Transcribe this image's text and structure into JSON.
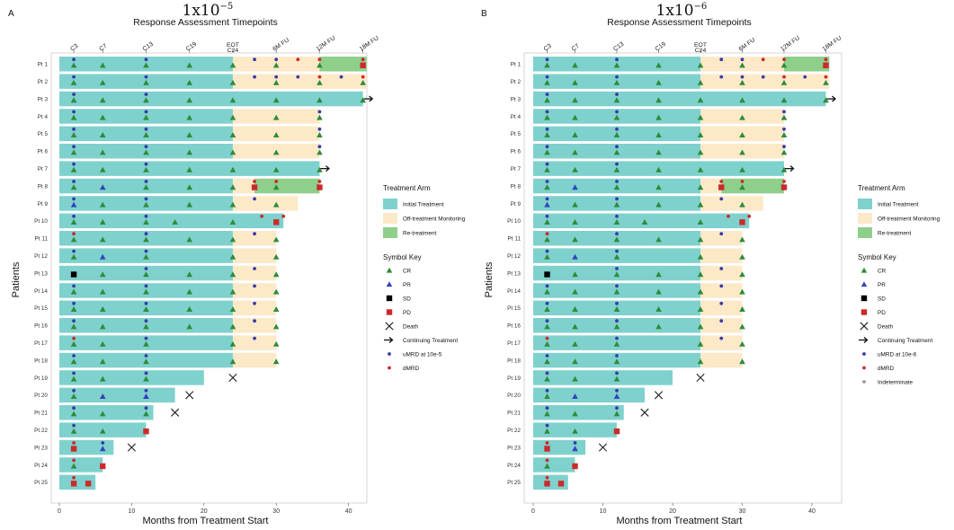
{
  "colors": {
    "initial": "#7fd1cd",
    "offtreat": "#fde9c8",
    "retreat": "#8fcf8c",
    "cr": "#2e8b3a",
    "pr": "#3344bb",
    "sd": "#000000",
    "pd": "#cc2a2a",
    "umrd": "#3a3aa8",
    "dmrd": "#cc2a2a",
    "indet": "#999999"
  },
  "panels": [
    {
      "letter": "A",
      "title": "1x10",
      "title_exp": "−5",
      "subtitle": "Response Assessment Timepoints",
      "xlabel": "Months from Treatment Start",
      "ylabel": "Patients",
      "legend": {
        "arm_title": "Treatment Arm",
        "arm_items": [
          "Initial Treatment",
          "Off-treatment Monitoring",
          "Re-treatment"
        ],
        "sym_title": "Symbol Key",
        "sym_items": [
          {
            "key": "cr",
            "label": "CR"
          },
          {
            "key": "pr",
            "label": "PR"
          },
          {
            "key": "sd",
            "label": "SD"
          },
          {
            "key": "pd",
            "label": "PD"
          },
          {
            "key": "death",
            "label": "Death"
          },
          {
            "key": "cont",
            "label": "Continuing Treatment"
          },
          {
            "key": "umrd",
            "label": "uMRD at 10e-5"
          },
          {
            "key": "dmrd",
            "label": "dMRD"
          }
        ]
      }
    },
    {
      "letter": "B",
      "title": "1x10",
      "title_exp": "−6",
      "subtitle": "Response Assessment Timepoints",
      "xlabel": "Months from Treatment Start",
      "ylabel": "Patients",
      "legend": {
        "arm_title": "Treatment Arm",
        "arm_items": [
          "Initial Treatment",
          "Off-treatment Monitoring",
          "Re-treatment"
        ],
        "sym_title": "Symbol Key",
        "sym_items": [
          {
            "key": "cr",
            "label": "CR"
          },
          {
            "key": "pr",
            "label": "PR"
          },
          {
            "key": "sd",
            "label": "SD"
          },
          {
            "key": "pd",
            "label": "PD"
          },
          {
            "key": "death",
            "label": "Death"
          },
          {
            "key": "cont",
            "label": "Continuing Treatment"
          },
          {
            "key": "umrd",
            "label": "uMRD at 10e-6"
          },
          {
            "key": "dmrd",
            "label": "dMRD"
          },
          {
            "key": "indet",
            "label": "Indeterminate"
          }
        ]
      }
    }
  ],
  "chart_data": {
    "type": "swimmer",
    "xlim": [
      -1,
      44
    ],
    "x_ticks": [
      0,
      10,
      20,
      30,
      40
    ],
    "timepoints": [
      {
        "label": "C3",
        "x": 2
      },
      {
        "label": "C7",
        "x": 6
      },
      {
        "label": "C13",
        "x": 12
      },
      {
        "label": "C19",
        "x": 18
      },
      {
        "label": "EOT\nC24",
        "x": 24
      },
      {
        "label": "6M FU",
        "x": 30
      },
      {
        "label": "12M FU",
        "x": 36
      },
      {
        "label": "18M FU",
        "x": 42
      }
    ],
    "patients": [
      {
        "id": "Pt 1",
        "init": 24,
        "off": 36,
        "re": 42.5,
        "resp": [
          [
            2,
            "cr"
          ],
          [
            6,
            "cr"
          ],
          [
            12,
            "cr"
          ],
          [
            18,
            "cr"
          ],
          [
            24,
            "cr"
          ],
          [
            30,
            "cr"
          ],
          [
            36,
            "cr"
          ],
          [
            42,
            "pd"
          ]
        ],
        "mrd": [
          [
            2,
            "umrd"
          ],
          [
            12,
            "umrd"
          ],
          [
            27,
            "umrd"
          ],
          [
            30,
            "umrd"
          ],
          [
            33,
            "dmrd"
          ],
          [
            36,
            "dmrd"
          ],
          [
            42,
            "dmrd"
          ]
        ]
      },
      {
        "id": "Pt 2",
        "init": 24,
        "off": 42.5,
        "resp": [
          [
            2,
            "cr"
          ],
          [
            6,
            "cr"
          ],
          [
            12,
            "cr"
          ],
          [
            18,
            "cr"
          ],
          [
            24,
            "cr"
          ],
          [
            30,
            "cr"
          ],
          [
            36,
            "cr"
          ],
          [
            42,
            "cr"
          ]
        ],
        "mrd": [
          [
            2,
            "umrd"
          ],
          [
            12,
            "umrd"
          ],
          [
            27,
            "umrd"
          ],
          [
            30,
            "umrd"
          ],
          [
            33,
            "umrd"
          ],
          [
            36,
            "dmrd"
          ],
          [
            39,
            "umrd"
          ],
          [
            42,
            "dmrd"
          ]
        ]
      },
      {
        "id": "Pt 3",
        "init": 42,
        "cont": true,
        "resp": [
          [
            2,
            "cr"
          ],
          [
            6,
            "cr"
          ],
          [
            12,
            "cr"
          ],
          [
            18,
            "cr"
          ],
          [
            24,
            "cr"
          ],
          [
            30,
            "cr"
          ],
          [
            36,
            "cr"
          ],
          [
            42,
            "cr"
          ]
        ],
        "mrd": [
          [
            2,
            "umrd"
          ],
          [
            12,
            "umrd"
          ]
        ]
      },
      {
        "id": "Pt 4",
        "init": 24,
        "off": 36,
        "resp": [
          [
            2,
            "cr"
          ],
          [
            6,
            "cr"
          ],
          [
            12,
            "cr"
          ],
          [
            18,
            "cr"
          ],
          [
            24,
            "cr"
          ],
          [
            30,
            "cr"
          ],
          [
            36,
            "cr"
          ]
        ],
        "mrd": [
          [
            2,
            "umrd"
          ],
          [
            12,
            "umrd"
          ],
          [
            36,
            "umrd"
          ]
        ]
      },
      {
        "id": "Pt 5",
        "init": 24,
        "off": 36,
        "resp": [
          [
            2,
            "cr"
          ],
          [
            6,
            "cr"
          ],
          [
            12,
            "cr"
          ],
          [
            18,
            "cr"
          ],
          [
            24,
            "cr"
          ],
          [
            30,
            "cr"
          ],
          [
            36,
            "cr"
          ]
        ],
        "mrd": [
          [
            2,
            "umrd"
          ],
          [
            12,
            "umrd"
          ],
          [
            36,
            "umrd"
          ]
        ]
      },
      {
        "id": "Pt 6",
        "init": 24,
        "off": 36,
        "resp": [
          [
            2,
            "cr"
          ],
          [
            6,
            "cr"
          ],
          [
            12,
            "cr"
          ],
          [
            18,
            "cr"
          ],
          [
            24,
            "cr"
          ],
          [
            30,
            "cr"
          ],
          [
            36,
            "cr"
          ]
        ],
        "mrd": [
          [
            2,
            "umrd"
          ],
          [
            12,
            "umrd"
          ],
          [
            36,
            "umrd"
          ]
        ]
      },
      {
        "id": "Pt 7",
        "init": 36,
        "cont": true,
        "resp": [
          [
            2,
            "cr"
          ],
          [
            6,
            "cr"
          ],
          [
            12,
            "cr"
          ],
          [
            18,
            "cr"
          ],
          [
            24,
            "cr"
          ],
          [
            30,
            "cr"
          ],
          [
            36,
            "cr"
          ]
        ],
        "mrd": [
          [
            2,
            "umrd"
          ],
          [
            12,
            "umrd"
          ]
        ]
      },
      {
        "id": "Pt 8",
        "init": 24,
        "off": 27,
        "re": 36,
        "resp": [
          [
            2,
            "cr"
          ],
          [
            6,
            "pr"
          ],
          [
            12,
            "cr"
          ],
          [
            18,
            "cr"
          ],
          [
            24,
            "cr"
          ],
          [
            27,
            "pd"
          ],
          [
            30,
            "cr"
          ],
          [
            36,
            "pd"
          ]
        ],
        "mrd": [
          [
            2,
            "umrd"
          ],
          [
            12,
            "umrd"
          ],
          [
            27,
            "dmrd"
          ],
          [
            30,
            "dmrd"
          ],
          [
            36,
            "dmrd"
          ]
        ]
      },
      {
        "id": "Pt 9",
        "init": 24,
        "off": 33,
        "resp": [
          [
            2,
            "pr"
          ],
          [
            6,
            "cr"
          ],
          [
            12,
            "cr"
          ],
          [
            18,
            "cr"
          ],
          [
            24,
            "cr"
          ],
          [
            30,
            "cr"
          ]
        ],
        "mrd": [
          [
            2,
            "umrd"
          ],
          [
            12,
            "umrd"
          ],
          [
            27,
            "umrd"
          ]
        ]
      },
      {
        "id": "Pt 10",
        "init": 31,
        "resp": [
          [
            2,
            "cr"
          ],
          [
            6,
            "cr"
          ],
          [
            12,
            "cr"
          ],
          [
            16,
            "cr"
          ],
          [
            24,
            "cr"
          ],
          [
            30,
            "pd"
          ]
        ],
        "mrd": [
          [
            2,
            "umrd"
          ],
          [
            12,
            "umrd"
          ],
          [
            28,
            "dmrd"
          ],
          [
            31,
            "dmrd"
          ]
        ]
      },
      {
        "id": "Pt 11",
        "init": 24,
        "off": 30,
        "resp": [
          [
            2,
            "cr"
          ],
          [
            6,
            "cr"
          ],
          [
            12,
            "cr"
          ],
          [
            18,
            "cr"
          ],
          [
            24,
            "cr"
          ],
          [
            30,
            "cr"
          ]
        ],
        "mrd": [
          [
            2,
            "dmrd"
          ],
          [
            12,
            "umrd"
          ],
          [
            27,
            "umrd"
          ]
        ]
      },
      {
        "id": "Pt 12",
        "init": 24,
        "off": 30,
        "resp": [
          [
            2,
            "cr"
          ],
          [
            6,
            "pr"
          ],
          [
            12,
            "cr"
          ],
          [
            24,
            "cr"
          ],
          [
            30,
            "cr"
          ]
        ],
        "mrd": [
          [
            2,
            "umrd"
          ],
          [
            12,
            "umrd"
          ]
        ]
      },
      {
        "id": "Pt 13",
        "init": 24,
        "off": 30,
        "resp": [
          [
            2,
            "sd"
          ],
          [
            6,
            "cr"
          ],
          [
            12,
            "cr"
          ],
          [
            18,
            "cr"
          ],
          [
            24,
            "cr"
          ],
          [
            30,
            "cr"
          ]
        ],
        "mrd": [
          [
            12,
            "umrd"
          ],
          [
            27,
            "umrd"
          ]
        ]
      },
      {
        "id": "Pt 14",
        "init": 24,
        "off": 30,
        "resp": [
          [
            2,
            "cr"
          ],
          [
            6,
            "cr"
          ],
          [
            12,
            "cr"
          ],
          [
            18,
            "cr"
          ],
          [
            24,
            "cr"
          ],
          [
            30,
            "cr"
          ]
        ],
        "mrd": [
          [
            2,
            "umrd"
          ],
          [
            12,
            "umrd"
          ],
          [
            27,
            "umrd"
          ]
        ]
      },
      {
        "id": "Pt 15",
        "init": 24,
        "off": 30,
        "resp": [
          [
            2,
            "cr"
          ],
          [
            6,
            "cr"
          ],
          [
            12,
            "cr"
          ],
          [
            18,
            "cr"
          ],
          [
            24,
            "cr"
          ],
          [
            30,
            "cr"
          ]
        ],
        "mrd": [
          [
            2,
            "umrd"
          ],
          [
            12,
            "umrd"
          ],
          [
            27,
            "umrd"
          ]
        ]
      },
      {
        "id": "Pt 16",
        "init": 24,
        "off": 30,
        "resp": [
          [
            2,
            "cr"
          ],
          [
            6,
            "cr"
          ],
          [
            12,
            "cr"
          ],
          [
            18,
            "cr"
          ],
          [
            24,
            "cr"
          ],
          [
            30,
            "cr"
          ]
        ],
        "mrd": [
          [
            2,
            "umrd"
          ],
          [
            12,
            "umrd"
          ],
          [
            27,
            "umrd"
          ]
        ]
      },
      {
        "id": "Pt 17",
        "init": 24,
        "off": 30,
        "resp": [
          [
            2,
            "cr"
          ],
          [
            6,
            "cr"
          ],
          [
            12,
            "cr"
          ],
          [
            24,
            "cr"
          ],
          [
            30,
            "cr"
          ]
        ],
        "mrd": [
          [
            2,
            "dmrd"
          ],
          [
            12,
            "umrd"
          ],
          [
            27,
            "umrd"
          ]
        ]
      },
      {
        "id": "Pt 18",
        "init": 24,
        "off": 30,
        "resp": [
          [
            2,
            "cr"
          ],
          [
            6,
            "cr"
          ],
          [
            12,
            "cr"
          ],
          [
            24,
            "cr"
          ],
          [
            30,
            "cr"
          ]
        ],
        "mrd": [
          [
            2,
            "umrd"
          ],
          [
            12,
            "umrd"
          ]
        ]
      },
      {
        "id": "Pt 19",
        "init": 20,
        "death": 22,
        "resp": [
          [
            2,
            "cr"
          ],
          [
            6,
            "cr"
          ],
          [
            12,
            "cr"
          ]
        ],
        "mrd": [
          [
            2,
            "umrd"
          ],
          [
            12,
            "umrd"
          ]
        ]
      },
      {
        "id": "Pt 20",
        "init": 16,
        "death": 16,
        "resp": [
          [
            2,
            "cr"
          ],
          [
            6,
            "pr"
          ],
          [
            12,
            "pr"
          ]
        ],
        "mrd": [
          [
            2,
            "umrd"
          ],
          [
            12,
            "umrd"
          ]
        ]
      },
      {
        "id": "Pt 21",
        "init": 13,
        "death": 14,
        "resp": [
          [
            2,
            "cr"
          ],
          [
            6,
            "cr"
          ],
          [
            12,
            "cr"
          ]
        ],
        "mrd": [
          [
            2,
            "umrd"
          ],
          [
            12,
            "umrd"
          ]
        ]
      },
      {
        "id": "Pt 22",
        "init": 12,
        "resp": [
          [
            2,
            "cr"
          ],
          [
            6,
            "cr"
          ],
          [
            12,
            "pd"
          ]
        ],
        "mrd": [
          [
            2,
            "umrd"
          ]
        ]
      },
      {
        "id": "Pt 23",
        "init": 7.5,
        "death": 8,
        "resp": [
          [
            2,
            "pd"
          ],
          [
            6,
            "pr"
          ]
        ],
        "mrd": [
          [
            2,
            "dmrd"
          ],
          [
            6,
            "umrd"
          ]
        ]
      },
      {
        "id": "Pt 24",
        "init": 6,
        "resp": [
          [
            2,
            "cr"
          ],
          [
            6,
            "pd"
          ]
        ],
        "mrd": [
          [
            2,
            "dmrd"
          ]
        ]
      },
      {
        "id": "Pt 25",
        "init": 5,
        "resp": [
          [
            2,
            "pd"
          ],
          [
            4,
            "pd"
          ]
        ],
        "mrd": [
          [
            2,
            "dmrd"
          ]
        ]
      }
    ]
  }
}
